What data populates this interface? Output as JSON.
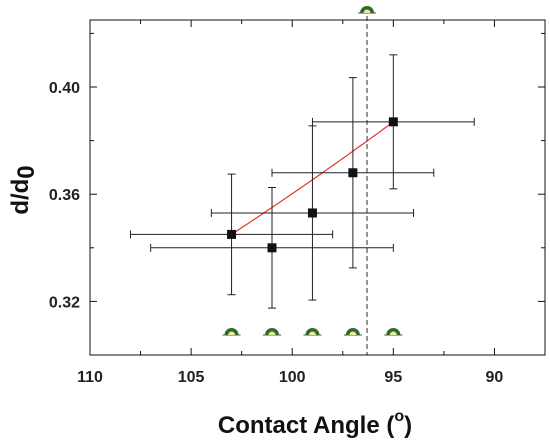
{
  "chart_data": {
    "type": "scatter",
    "xlabel_main": "Contact Angle (",
    "xlabel_sup": "o",
    "xlabel_end": ")",
    "ylabel_main": "d/d",
    "ylabel_sub": "0",
    "xlim": [
      110,
      87.5
    ],
    "ylim": [
      0.3,
      0.425
    ],
    "x_reversed": true,
    "x_ticks": [
      110,
      105,
      100,
      95,
      90
    ],
    "x_tick_labels": [
      "110",
      "105",
      "100",
      "95",
      "90"
    ],
    "y_ticks": [
      0.32,
      0.36,
      0.4
    ],
    "y_tick_labels": [
      "0.32",
      "0.36",
      "0.40"
    ],
    "grid": false,
    "points": [
      {
        "x": 103,
        "y": 0.345,
        "xerr": 5,
        "yerr": 0.0225
      },
      {
        "x": 101,
        "y": 0.34,
        "xerr": 6,
        "yerr": 0.0225
      },
      {
        "x": 99,
        "y": 0.353,
        "xerr": 5,
        "yerr": 0.0325
      },
      {
        "x": 97,
        "y": 0.368,
        "xerr": 4,
        "yerr": 0.0355
      },
      {
        "x": 95,
        "y": 0.387,
        "xerr": 4,
        "yerr": 0.025
      }
    ],
    "fit_curve": {
      "color": "#e8332a",
      "x_from": 103,
      "x_to": 95
    },
    "reference_line": {
      "x": 96.3,
      "style": "dashed"
    },
    "droplet_icons_x": [
      103,
      101,
      99,
      97,
      95,
      96.3
    ],
    "marker_color": "#111111",
    "droplet_color": "#2e6b2b"
  }
}
